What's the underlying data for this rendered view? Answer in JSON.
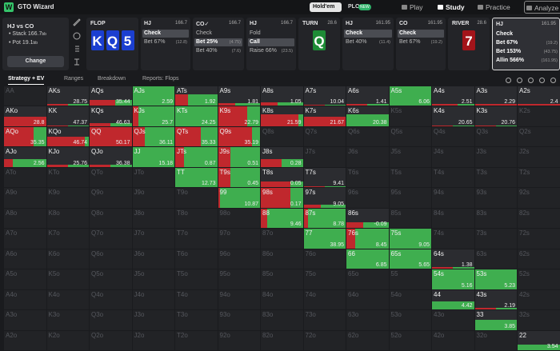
{
  "nav": {
    "logo": "GTO Wizard",
    "modes": [
      {
        "label": "Hold'em",
        "active": true
      },
      {
        "label": "PLO",
        "badge": "NEW"
      }
    ],
    "tabs": [
      {
        "label": "Play"
      },
      {
        "label": "Study",
        "active": true
      },
      {
        "label": "Practice"
      },
      {
        "label": "Analyze"
      }
    ]
  },
  "spot": {
    "title": "HJ vs CO",
    "stack": "Stack 166.7",
    "pot": "Pot 19.1",
    "unit": "bb",
    "button": "Change"
  },
  "streets": [
    {
      "type": "board",
      "label": "FLOP",
      "cards": [
        {
          "rank": "K",
          "color": "#1b3fd0"
        },
        {
          "rank": "Q",
          "color": "#1b3fd0"
        },
        {
          "rank": "5",
          "color": "#1b3fd0"
        }
      ]
    },
    {
      "type": "player",
      "position": "HJ",
      "stack": "166.7",
      "actions": [
        {
          "name": "Check"
        },
        {
          "name": "Bet 67%",
          "size": "(12.8)"
        }
      ],
      "selected": 0
    },
    {
      "type": "player",
      "position": "CO✓",
      "stack": "166.7",
      "actions": [
        {
          "name": "Check"
        },
        {
          "name": "Bet 25%",
          "size": "(4.75)"
        },
        {
          "name": "Bet 40%",
          "size": "(7.6)"
        }
      ],
      "selected": 1
    },
    {
      "type": "player",
      "position": "HJ",
      "stack": "166.7",
      "actions": [
        {
          "name": "Fold"
        },
        {
          "name": "Call"
        },
        {
          "name": "Raise 66%",
          "size": "(23.5)"
        }
      ],
      "selected": 1
    },
    {
      "type": "board",
      "label": "TURN",
      "pot": "28.6",
      "cards": [
        {
          "rank": "Q",
          "color": "#1e8c36"
        }
      ]
    },
    {
      "type": "player",
      "position": "HJ",
      "stack": "161.95",
      "actions": [
        {
          "name": "Check"
        },
        {
          "name": "Bet 40%",
          "size": "(11.4)"
        }
      ],
      "selected": 0
    },
    {
      "type": "player",
      "position": "CO",
      "stack": "161.95",
      "actions": [
        {
          "name": "Check"
        },
        {
          "name": "Bet 67%",
          "size": "(19.2)"
        }
      ],
      "selected": 0
    },
    {
      "type": "board",
      "label": "RIVER",
      "pot": "28.6",
      "cards": [
        {
          "rank": "7",
          "color": "#a3141a"
        }
      ]
    },
    {
      "type": "player",
      "position": "HJ",
      "stack": "161.95",
      "actions": [
        {
          "name": "Check"
        },
        {
          "name": "Bet 67%",
          "size": "(19.2)"
        },
        {
          "name": "Bet 153%",
          "size": "(43.75)"
        },
        {
          "name": "Allin 566%",
          "size": "(161.95)"
        }
      ],
      "current": true
    }
  ],
  "tabs": [
    {
      "label": "Strategy + EV",
      "active": true
    },
    {
      "label": "Ranges"
    },
    {
      "label": "Breakdown"
    },
    {
      "label": "Reports: Flops"
    }
  ],
  "grid": {
    "colors": {
      "bet": "#c0282d",
      "check": "#3fae4f"
    },
    "rows": [
      [
        "AA",
        {
          "hand": "AKs",
          "ev": 28.75,
          "weight": 10,
          "check": 50
        },
        {
          "hand": "AQs",
          "ev": 35.44,
          "weight": 30,
          "check": 40
        },
        {
          "hand": "AJs",
          "ev": 2.59,
          "weight": 100,
          "check": 100
        },
        {
          "hand": "ATs",
          "ev": 1.92,
          "weight": 60,
          "check": 70
        },
        {
          "hand": "A9s",
          "ev": 1.81,
          "weight": 15,
          "check": 60
        },
        {
          "hand": "A8s",
          "ev": 1.05,
          "weight": 20,
          "check": 60
        },
        {
          "hand": "A7s",
          "ev": 10.04,
          "weight": 5,
          "check": 50
        },
        {
          "hand": "A6s",
          "ev": 1.41,
          "weight": 10,
          "check": 50
        },
        {
          "hand": "A5s",
          "ev": 6.06,
          "weight": 100,
          "check": 100
        },
        {
          "hand": "A4s",
          "ev": 2.51,
          "weight": 10,
          "check": 40
        },
        {
          "hand": "A3s",
          "ev": 2.29,
          "weight": 10,
          "check": 0
        },
        {
          "hand": "A2s",
          "ev": 2.4,
          "weight": 10,
          "check": 0
        }
      ],
      [
        {
          "hand": "AKo",
          "ev": 28.8,
          "weight": 50,
          "check": 0
        },
        {
          "hand": "KK",
          "ev": 47.37,
          "weight": 5,
          "check": 50
        },
        {
          "hand": "KQs",
          "ev": 46.63,
          "weight": 15,
          "check": 50
        },
        {
          "hand": "KJs",
          "ev": 25.7,
          "weight": 100,
          "check": 85
        },
        {
          "hand": "KTs",
          "ev": 24.25,
          "weight": 100,
          "check": 100
        },
        {
          "hand": "K9s",
          "ev": 22.79,
          "weight": 100,
          "check": 30
        },
        {
          "hand": "K8s",
          "ev": 21.59,
          "weight": 60,
          "check": 10
        },
        {
          "hand": "K7s",
          "ev": 21.67,
          "weight": 50,
          "check": 0
        },
        {
          "hand": "K6s",
          "ev": 20.38,
          "weight": 60,
          "check": 100
        },
        "K5s",
        {
          "hand": "K4s",
          "ev": 20.65,
          "weight": 5,
          "check": 50
        },
        {
          "hand": "K3s",
          "ev": 20.76,
          "weight": 5,
          "check": 50
        },
        "K2s"
      ],
      [
        {
          "hand": "AQo",
          "ev": 35.35,
          "weight": 100,
          "check": 30
        },
        {
          "hand": "KQo",
          "ev": 46.74,
          "weight": 50,
          "check": 10
        },
        {
          "hand": "QQ",
          "ev": 50.17,
          "weight": 100,
          "check": 0
        },
        {
          "hand": "QJs",
          "ev": 36.11,
          "weight": 100,
          "check": 70
        },
        {
          "hand": "QTs",
          "ev": 35.33,
          "weight": 100,
          "check": 40
        },
        {
          "hand": "Q9s",
          "ev": 35.19,
          "weight": 100,
          "check": 20
        },
        "Q8s",
        "Q7s",
        "Q6s",
        "Q5s",
        "Q4s",
        "Q3s",
        "Q2s"
      ],
      [
        {
          "hand": "AJo",
          "ev": 2.56,
          "weight": 40,
          "check": 80
        },
        {
          "hand": "KJo",
          "ev": 25.76,
          "weight": 10,
          "check": 50
        },
        {
          "hand": "QJo",
          "ev": 36.38,
          "weight": 10,
          "check": 50
        },
        {
          "hand": "JJ",
          "ev": 15.18,
          "weight": 100,
          "check": 100
        },
        {
          "hand": "JTs",
          "ev": 0.87,
          "weight": 100,
          "check": 80
        },
        {
          "hand": "J9s",
          "ev": 0.51,
          "weight": 100,
          "check": 70
        },
        {
          "hand": "J8s",
          "ev": 0.28,
          "weight": 40,
          "check": 50
        },
        "J7s",
        "J6s",
        "J5s",
        "J4s",
        "J3s",
        "J2s"
      ],
      [
        "ATo",
        "KTo",
        "QTo",
        "JTo",
        {
          "hand": "TT",
          "ev": 12.73,
          "weight": 100,
          "check": 100
        },
        {
          "hand": "T9s",
          "ev": 0.45,
          "weight": 100,
          "check": 70
        },
        {
          "hand": "T8s",
          "ev": 0.05,
          "weight": 30,
          "check": 30
        },
        {
          "hand": "T7s",
          "ev": 9.41,
          "weight": 5,
          "check": 50
        },
        "T6s",
        "T5s",
        "T4s",
        "T3s",
        "T2s"
      ],
      [
        "A9o",
        "K9o",
        "Q9o",
        "J9o",
        "T9o",
        {
          "hand": "99",
          "ev": 10.87,
          "weight": 100,
          "check": 95
        },
        {
          "hand": "98s",
          "ev": 0.17,
          "weight": 100,
          "check": 30
        },
        {
          "hand": "97s",
          "ev": 9.05,
          "weight": 15,
          "check": 60
        },
        "96s",
        "95s",
        "94s",
        "93s",
        "92s"
      ],
      [
        "A8o",
        "K8o",
        "Q8o",
        "J8o",
        "T8o",
        "98o",
        {
          "hand": "88",
          "ev": 9.46,
          "weight": 100,
          "check": 85
        },
        {
          "hand": "87s",
          "ev": 8.78,
          "weight": 100,
          "check": 90
        },
        {
          "hand": "86s",
          "ev": -0.09,
          "weight": 30,
          "check": 60
        },
        "85s",
        "84s",
        "83s",
        "82s"
      ],
      [
        "A7o",
        "K7o",
        "Q7o",
        "J7o",
        "T7o",
        "97o",
        "87o",
        {
          "hand": "77",
          "ev": 38.95,
          "weight": 100,
          "check": 100
        },
        {
          "hand": "76s",
          "ev": 8.45,
          "weight": 100,
          "check": 80
        },
        {
          "hand": "75s",
          "ev": 9.05,
          "weight": 100,
          "check": 100
        },
        "74s",
        "73s",
        "72s"
      ],
      [
        "A6o",
        "K6o",
        "Q6o",
        "J6o",
        "T6o",
        "96o",
        "86o",
        "76o",
        {
          "hand": "66",
          "ev": 6.85,
          "weight": 100,
          "check": 100
        },
        {
          "hand": "65s",
          "ev": 5.65,
          "weight": 100,
          "check": 100
        },
        {
          "hand": "64s",
          "ev": 1.38,
          "weight": 10,
          "check": 50
        },
        "63s",
        "62s"
      ],
      [
        "A5o",
        "K5o",
        "Q5o",
        "J5o",
        "T5o",
        "95o",
        "85o",
        "75o",
        "65o",
        "55",
        {
          "hand": "54s",
          "ev": 5.16,
          "weight": 100,
          "check": 100
        },
        {
          "hand": "53s",
          "ev": 5.23,
          "weight": 100,
          "check": 100
        },
        "52s"
      ],
      [
        "A4o",
        "K4o",
        "Q4o",
        "J4o",
        "T4o",
        "94o",
        "84o",
        "74o",
        "64o",
        "54o",
        {
          "hand": "44",
          "ev": 4.42,
          "weight": 40,
          "check": 100
        },
        {
          "hand": "43s",
          "ev": 2.19,
          "weight": 10,
          "check": 50
        },
        "42s"
      ],
      [
        "A3o",
        "K3o",
        "Q3o",
        "J3o",
        "T3o",
        "93o",
        "83o",
        "73o",
        "63o",
        "53o",
        "43o",
        {
          "hand": "33",
          "ev": 3.85,
          "weight": 50,
          "check": 100
        },
        "32s"
      ],
      [
        "A2o",
        "K2o",
        "Q2o",
        "J2o",
        "T2o",
        "92o",
        "82o",
        "72o",
        "62o",
        "52o",
        "42o",
        "32o",
        {
          "hand": "22",
          "ev": 3.54,
          "weight": 30,
          "check": 100
        }
      ]
    ]
  }
}
